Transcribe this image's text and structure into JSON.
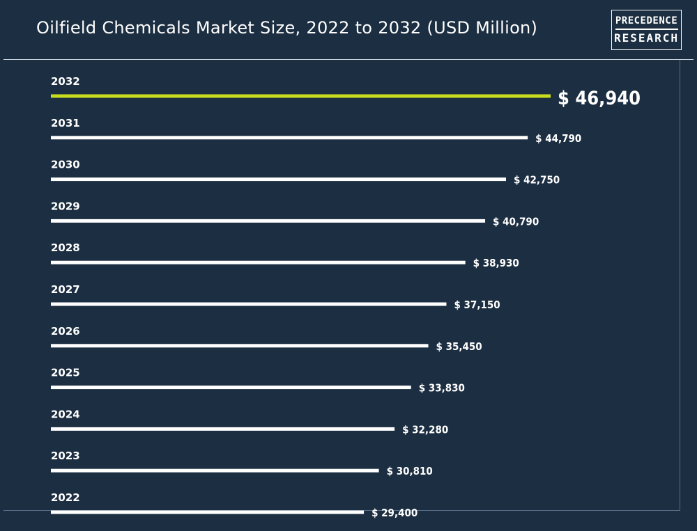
{
  "title": "Oilfield Chemicals Market Size, 2022 to 2032 (USD Million)",
  "logo": {
    "line1": "PRECEDENCE",
    "line2": "RESEARCH"
  },
  "colors": {
    "background": "#1c2e41",
    "bar": "#ffffff",
    "highlight": "#c8dc1e",
    "text": "#ffffff"
  },
  "chart_data": {
    "type": "bar",
    "orientation": "horizontal",
    "title": "Oilfield Chemicals Market Size, 2022 to 2032 (USD Million)",
    "categories": [
      "2032",
      "2031",
      "2030",
      "2029",
      "2028",
      "2027",
      "2026",
      "2025",
      "2024",
      "2023",
      "2022"
    ],
    "values": [
      46940,
      44790,
      42750,
      40790,
      38930,
      37150,
      35450,
      33830,
      32280,
      30810,
      29400
    ],
    "value_labels": [
      "$ 46,940",
      "$ 44,790",
      "$ 42,750",
      "$ 40,790",
      "$ 38,930",
      "$ 37,150",
      "$ 35,450",
      "$ 33,830",
      "$ 32,280",
      "$ 30,810",
      "$ 29,400"
    ],
    "highlight_category": "2032",
    "grid": false,
    "legend": "none"
  }
}
